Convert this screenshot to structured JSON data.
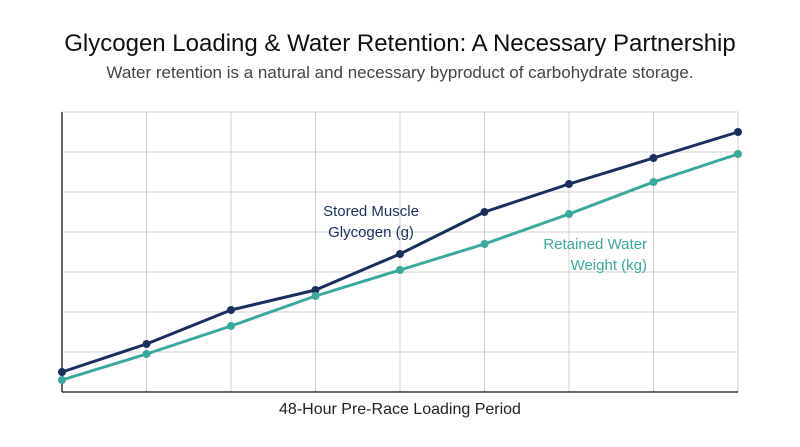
{
  "title": "Glycogen Loading & Water Retention: A Necessary Partnership",
  "subtitle": "Water retention is a natural and necessary byproduct of carbohydrate storage.",
  "colors": {
    "glycogen": "#1b2f5e",
    "water": "#3aa89a",
    "grid": "#d0d0d0",
    "axis": "#333333"
  },
  "chart_data": {
    "type": "line",
    "title": "Glycogen Loading & Water Retention: A Necessary Partnership",
    "subtitle": "Water retention is a natural and necessary byproduct of carbohydrate storage.",
    "xlabel": "48-Hour Pre-Race Loading Period",
    "ylabel": "",
    "x": [
      0,
      1,
      2,
      3,
      4,
      5,
      6,
      7,
      8
    ],
    "xlim": [
      0,
      8
    ],
    "ylim": [
      0,
      7
    ],
    "grid": true,
    "legend": "none (direct labels on lines)",
    "series": [
      {
        "name": "Stored Muscle Glycogen (g)",
        "label_lines": [
          "Stored Muscle",
          "Glycogen  (g)"
        ],
        "color": "#1b2f5e",
        "values": [
          0.5,
          1.2,
          2.05,
          2.55,
          3.45,
          4.5,
          5.2,
          5.85,
          6.5
        ]
      },
      {
        "name": "Retained Water Weight (kg)",
        "label_lines": [
          "Retained Water",
          "Weight (kg)"
        ],
        "color": "#3aa89a",
        "values": [
          0.3,
          0.95,
          1.65,
          2.4,
          3.05,
          3.7,
          4.45,
          5.25,
          5.95
        ]
      }
    ]
  }
}
